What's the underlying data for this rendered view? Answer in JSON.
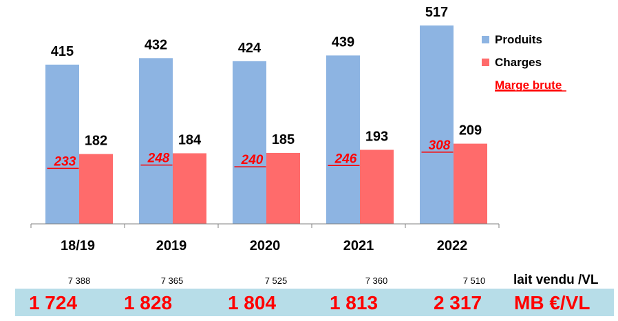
{
  "chart_data": {
    "type": "bar",
    "categories": [
      "18/19",
      "2019",
      "2020",
      "2021",
      "2022"
    ],
    "series": [
      {
        "name": "Produits",
        "values": [
          415,
          432,
          424,
          439,
          517
        ],
        "color": "#8db4e2"
      },
      {
        "name": "Charges",
        "values": [
          182,
          184,
          185,
          193,
          209
        ],
        "color": "#ff6b6b"
      }
    ],
    "marge_brute": {
      "name": "Marge brute",
      "values": [
        233,
        248,
        240,
        246,
        308
      ],
      "color": "#ff0000"
    },
    "ylim": [
      0,
      540
    ],
    "grid": false,
    "legend": "top-right"
  },
  "table": {
    "lait_vendu_label": "lait vendu /VL",
    "lait_vendu": [
      "7 388",
      "7 365",
      "7 525",
      "7 360",
      "7 510"
    ],
    "mb_label": "MB €/VL",
    "mb_per_vl": [
      "1 724",
      "1 828",
      "1 804",
      "1 813",
      "2 317"
    ],
    "band_color": "#b7dde8"
  }
}
